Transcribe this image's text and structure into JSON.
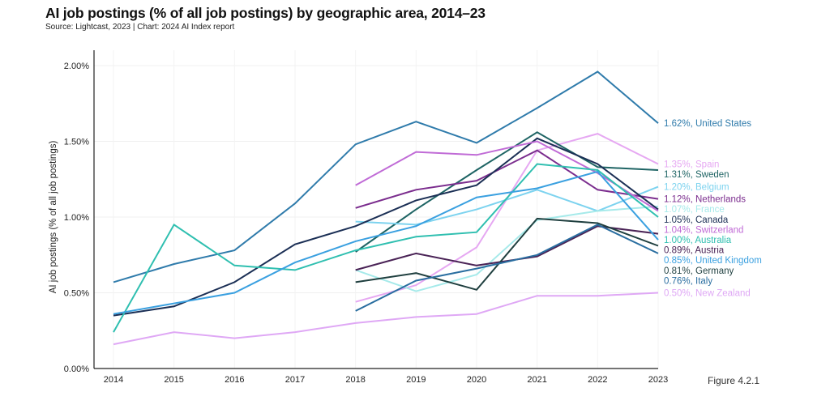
{
  "header": {
    "title": "AI job postings (% of all job postings) by geographic area, 2014–23",
    "subtitle": "Source: Lightcast, 2023 | Chart: 2024 AI Index report",
    "figure_label": "Figure 4.2.1"
  },
  "chart_data": {
    "type": "line",
    "title": "AI job postings (% of all job postings) by geographic area, 2014–23",
    "subtitle": "Source: Lightcast, 2023 | Chart: 2024 AI Index report",
    "xlabel": "",
    "ylabel": "AI job postings (% of all job postings)",
    "x": [
      2014,
      2015,
      2016,
      2017,
      2018,
      2019,
      2020,
      2021,
      2022,
      2023
    ],
    "ylim": [
      0,
      2.0
    ],
    "yticks": [
      0,
      0.5,
      1.0,
      1.5,
      2.0
    ],
    "ytick_labels": [
      "0.00%",
      "0.50%",
      "1.00%",
      "1.50%",
      "2.00%"
    ],
    "grid": true,
    "legend": "end-of-line labels (right)",
    "series": [
      {
        "name": "United States",
        "label": "1.62%, United States",
        "color": "#2f7bab",
        "values": [
          0.57,
          0.69,
          0.78,
          1.09,
          1.48,
          1.63,
          1.49,
          1.72,
          1.96,
          1.62
        ]
      },
      {
        "name": "Spain",
        "label": "1.35%, Spain",
        "color": "#e6a8f2",
        "values": [
          null,
          null,
          null,
          null,
          0.44,
          0.55,
          0.8,
          1.44,
          1.55,
          1.35
        ]
      },
      {
        "name": "Sweden",
        "label": "1.31%, Sweden",
        "color": "#1e6464",
        "values": [
          null,
          null,
          null,
          null,
          0.77,
          1.05,
          1.31,
          1.56,
          1.33,
          1.31
        ]
      },
      {
        "name": "Belgium",
        "label": "1.20%, Belgium",
        "color": "#7dd3ef",
        "values": [
          null,
          null,
          null,
          null,
          0.97,
          0.95,
          1.05,
          1.18,
          1.04,
          1.2
        ]
      },
      {
        "name": "Netherlands",
        "label": "1.12%, Netherlands",
        "color": "#7b2d8e",
        "values": [
          null,
          null,
          null,
          null,
          1.06,
          1.18,
          1.24,
          1.44,
          1.18,
          1.12
        ]
      },
      {
        "name": "France",
        "label": "1.07%, France",
        "color": "#a6eaea",
        "values": [
          null,
          null,
          null,
          null,
          0.65,
          0.51,
          0.62,
          0.98,
          1.04,
          1.07
        ]
      },
      {
        "name": "Canada",
        "label": "1.05%, Canada",
        "color": "#1b2f55",
        "values": [
          0.35,
          0.41,
          0.57,
          0.82,
          0.94,
          1.11,
          1.21,
          1.52,
          1.35,
          1.05
        ]
      },
      {
        "name": "Switzerland",
        "label": "1.04%, Switzerland",
        "color": "#c06bd6",
        "values": [
          null,
          null,
          null,
          null,
          1.21,
          1.43,
          1.41,
          1.5,
          1.29,
          1.04
        ]
      },
      {
        "name": "Australia",
        "label": "1.00%, Australia",
        "color": "#2fbfb0",
        "values": [
          0.24,
          0.95,
          0.68,
          0.65,
          0.78,
          0.87,
          0.9,
          1.35,
          1.31,
          1.0
        ]
      },
      {
        "name": "Austria",
        "label": "0.89%, Austria",
        "color": "#4a2356",
        "values": [
          null,
          null,
          null,
          null,
          0.65,
          0.76,
          0.68,
          0.74,
          0.94,
          0.89
        ]
      },
      {
        "name": "United Kingdom",
        "label": "0.85%, United Kingdom",
        "color": "#3aa0e0",
        "values": [
          0.36,
          0.43,
          0.5,
          0.7,
          0.84,
          0.94,
          1.13,
          1.19,
          1.3,
          0.85
        ]
      },
      {
        "name": "Germany",
        "label": "0.81%, Germany",
        "color": "#1f3f3f",
        "values": [
          null,
          null,
          null,
          null,
          0.57,
          0.63,
          0.52,
          0.99,
          0.96,
          0.81
        ]
      },
      {
        "name": "Italy",
        "label": "0.76%, Italy",
        "color": "#2a6ea0",
        "values": [
          null,
          null,
          null,
          null,
          0.38,
          0.58,
          0.66,
          0.75,
          0.95,
          0.76
        ]
      },
      {
        "name": "New Zealand",
        "label": "0.50%, New Zealand",
        "color": "#dfa8f5",
        "values": [
          0.16,
          0.24,
          0.2,
          0.24,
          0.3,
          0.34,
          0.36,
          0.48,
          0.48,
          0.5
        ]
      }
    ]
  }
}
